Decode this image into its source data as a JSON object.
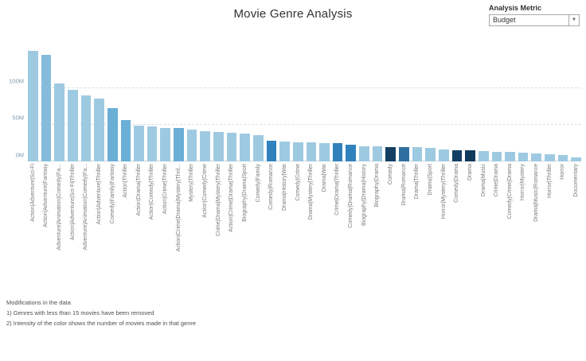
{
  "header": {
    "title": "Movie Genre Analysis"
  },
  "controls": {
    "metric_label": "Analysis Metric",
    "metric_value": "Budget",
    "dropdown_caret": "▼"
  },
  "chart_data": {
    "type": "bar",
    "title": "Movie Genre Analysis",
    "xlabel": "",
    "ylabel": "",
    "ylim": [
      0,
      160
    ],
    "grid": "horizontal-dashed",
    "legend": "none",
    "yticks": [
      {
        "label": "0M",
        "value": 0
      },
      {
        "label": "50M",
        "value": 50
      },
      {
        "label": "100M",
        "value": 100
      }
    ],
    "categories": [
      "Action|Adventure|Sci-Fi",
      "Action|Adventure|Fantasy",
      "Adventure|Animation|Comedy|Fa...",
      "Action|Adventure|Sci-Fi|Thriller",
      "Adventure|Animation|Comedy|Fa...",
      "Action|Adventure|Thriller",
      "Comedy|Family|Fantasy",
      "Action|Thriller",
      "Action|Drama|Thriller",
      "Action|Comedy|Thriller",
      "Action|Crime|Thriller",
      "Action|Crime|Drama|Mystery|Thril...",
      "Mystery|Thriller",
      "Action|Comedy|Crime",
      "Crime|Drama|Mystery|Thriller",
      "Action|Crime|Drama|Thriller",
      "Biography|Drama|Sport",
      "Comedy|Family",
      "Comedy|Romance",
      "Drama|History|War",
      "Comedy|Crime",
      "Drama|Mystery|Thriller",
      "Drama|War",
      "Crime|Drama|Thriller",
      "Comedy|Drama|Romance",
      "Biography|Drama|History",
      "Biography|Drama",
      "Comedy",
      "Drama|Romance",
      "Drama|Thriller",
      "Drama|Sport",
      "Horror|Mystery|Thriller",
      "Comedy|Drama",
      "Drama",
      "Drama|Music",
      "Crime|Drama",
      "Comedy|Crime|Drama",
      "Horror|Mystery",
      "Drama|Music|Romance",
      "Horror|Thriller",
      "Horror",
      "Documentary"
    ],
    "values": [
      150,
      145,
      106,
      97,
      90,
      86,
      72,
      56,
      49,
      48,
      46,
      45,
      43,
      41,
      40,
      39,
      38,
      36,
      28,
      27,
      26,
      26,
      25,
      25,
      23,
      21,
      21,
      20,
      20,
      19,
      18,
      16,
      15,
      15,
      14,
      13,
      13,
      12,
      11,
      10,
      9,
      5
    ],
    "values_unit": "M (millions, Budget)",
    "colors": [
      "#9ecae1",
      "#85bcdb",
      "#9ecae1",
      "#9ecae1",
      "#9ecae1",
      "#9ecae1",
      "#6baed6",
      "#6baed6",
      "#9ecae1",
      "#9ecae1",
      "#9ecae1",
      "#6baed6",
      "#9ecae1",
      "#9ecae1",
      "#9ecae1",
      "#9ecae1",
      "#9ecae1",
      "#9ecae1",
      "#3181bd",
      "#9ecae1",
      "#9ecae1",
      "#9ecae1",
      "#9ecae1",
      "#3181bd",
      "#3181bd",
      "#9ecae1",
      "#9ecae1",
      "#123f63",
      "#2f6f9f",
      "#9ecae1",
      "#9ecae1",
      "#9ecae1",
      "#123f63",
      "#0e3a5c",
      "#9ecae1",
      "#9ecae1",
      "#9ecae1",
      "#9ecae1",
      "#9ecae1",
      "#9ecae1",
      "#9ecae1",
      "#9ecae1"
    ],
    "color_meaning": "Intensity of the color shows the number of movies made in that genre"
  },
  "footnotes": {
    "line1": "Modifications in the data",
    "line2": "1) Genres with less than 15 movies have been removed",
    "line3": "2) Intensity of the color shows the number of movies made in that genre"
  }
}
